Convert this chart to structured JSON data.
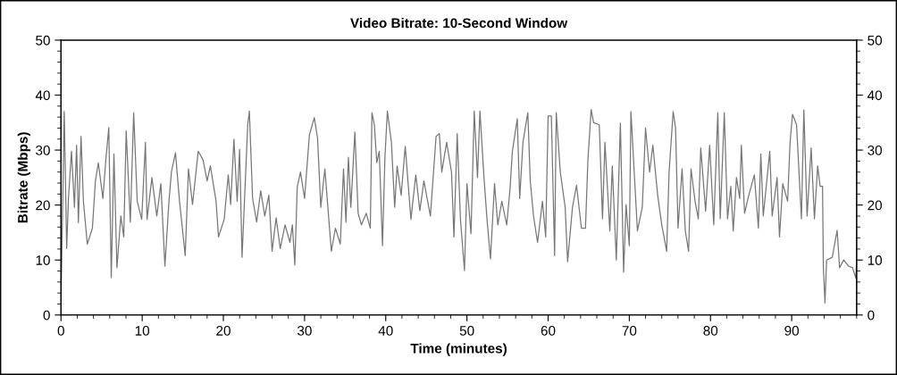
{
  "chart_data": {
    "type": "line",
    "title": "Video Bitrate: 10-Second Window",
    "xlabel": "Time (minutes)",
    "ylabel": "Bitrate (Mbps)",
    "xlim": [
      0,
      98
    ],
    "xticks": [
      0,
      10,
      20,
      30,
      40,
      50,
      60,
      70,
      80,
      90
    ],
    "ylim": [
      0,
      50
    ],
    "yticks": [
      0,
      10,
      20,
      30,
      40,
      50
    ],
    "y2lim": [
      0,
      50
    ],
    "y2ticks": [
      0,
      10,
      20,
      30,
      40,
      50
    ],
    "grid": false,
    "legend": false,
    "marker": "none",
    "line_style": "solid",
    "series": [
      {
        "color": "#777777",
        "x": [
          0,
          0.4,
          0.7,
          0.92,
          1.29,
          1.66,
          1.92,
          2.14,
          2.47,
          2.76,
          3.24,
          3.87,
          4.24,
          4.6,
          5.16,
          5.52,
          5.89,
          6.19,
          6.52,
          6.89,
          7.37,
          7.73,
          8.03,
          8.54,
          8.95,
          9.39,
          9.94,
          10.4,
          10.6,
          11.2,
          11.8,
          12.3,
          12.8,
          13.3,
          13.6,
          14.1,
          14.6,
          15.3,
          15.7,
          16.2,
          16.9,
          17.5,
          18.0,
          18.4,
          19.1,
          19.4,
          20.1,
          20.6,
          20.9,
          21.3,
          21.7,
          22.0,
          22.3,
          23.0,
          23.2,
          23.6,
          24.1,
          24.6,
          25.1,
          25.6,
          26.0,
          26.5,
          27.0,
          27.6,
          28.2,
          28.5,
          28.8,
          29.1,
          29.5,
          30.0,
          30.6,
          31.2,
          31.6,
          32.0,
          32.5,
          33.1,
          33.3,
          33.8,
          34.4,
          34.8,
          35.1,
          35.4,
          35.7,
          36.2,
          36.6,
          37.0,
          37.6,
          38.1,
          38.3,
          38.6,
          38.9,
          39.2,
          39.6,
          39.9,
          40.2,
          40.7,
          41.1,
          41.4,
          41.9,
          42.4,
          43.1,
          43.7,
          44.2,
          44.7,
          45.5,
          46.2,
          46.6,
          46.9,
          47.5,
          48.1,
          48.4,
          48.8,
          49.2,
          49.7,
          50.0,
          50.5,
          50.9,
          51.3,
          51.6,
          52.1,
          52.5,
          52.9,
          53.4,
          53.8,
          54.3,
          54.9,
          55.3,
          55.6,
          56.2,
          56.5,
          56.9,
          57.5,
          57.8,
          58.2,
          58.7,
          59.3,
          59.7,
          60.0,
          60.4,
          60.8,
          61.0,
          61.5,
          62.1,
          62.4,
          63.0,
          63.5,
          64.1,
          64.6,
          64.9,
          65.3,
          65.6,
          66.3,
          66.7,
          67.0,
          67.6,
          67.9,
          68.4,
          68.9,
          69.3,
          69.6,
          70.0,
          70.2,
          70.7,
          71.0,
          71.6,
          72.0,
          72.5,
          72.9,
          73.5,
          74.0,
          74.6,
          74.9,
          75.4,
          75.7,
          76.0,
          76.5,
          76.9,
          77.3,
          77.6,
          78.1,
          78.5,
          78.8,
          79.4,
          79.9,
          80.4,
          80.9,
          81.2,
          81.7,
          82.1,
          82.5,
          82.8,
          83.2,
          83.6,
          83.8,
          84.2,
          84.7,
          85.4,
          85.9,
          86.2,
          86.5,
          87.3,
          87.6,
          88.2,
          88.5,
          88.9,
          89.5,
          89.8,
          90.1,
          90.6,
          91.2,
          91.5,
          91.9,
          92.4,
          92.8,
          93.2,
          93.5,
          93.8,
          93.9,
          94.1,
          94.3,
          95.0,
          95.6,
          95.9,
          96.4,
          97.0,
          97.5,
          97.9,
          98.0
        ],
        "values": [
          2.4,
          37,
          12.1,
          21.2,
          29.8,
          19.6,
          30.9,
          16.8,
          32.5,
          20.7,
          12.9,
          15.8,
          24.4,
          27.7,
          21.2,
          28.2,
          34.1,
          6.8,
          29.3,
          8.6,
          18,
          14.2,
          33.5,
          16.9,
          36.8,
          20.7,
          17.4,
          31.4,
          17.4,
          25,
          18,
          23.9,
          8.9,
          20.7,
          26,
          29.5,
          20.7,
          10.8,
          26.6,
          20.1,
          29.8,
          28.2,
          24.4,
          27.1,
          20.7,
          14.2,
          17.4,
          25.5,
          20.1,
          32,
          20.7,
          30.1,
          10.5,
          34.6,
          37.1,
          21.2,
          16.9,
          22.6,
          18,
          21.8,
          11.6,
          17.7,
          12.1,
          16.4,
          13.2,
          16.4,
          9.1,
          23.3,
          26,
          21.2,
          32.8,
          35.9,
          32.2,
          19.6,
          26.6,
          15.3,
          11.6,
          15.8,
          12.9,
          26.6,
          16.9,
          28.7,
          19.6,
          33.3,
          18.5,
          16.4,
          18.5,
          15.8,
          36.8,
          34.6,
          27.7,
          29.8,
          12.6,
          28.7,
          37.1,
          31.4,
          19.6,
          27.1,
          21.8,
          30.7,
          17.4,
          25.5,
          19,
          24.4,
          18,
          32.5,
          33,
          26,
          31.4,
          26,
          14.2,
          33,
          17.4,
          8.1,
          23.9,
          14.8,
          37.1,
          25,
          37.1,
          25,
          16.9,
          10.2,
          23.9,
          16.4,
          20.7,
          16.4,
          22.8,
          29.8,
          35.7,
          21.2,
          31.4,
          36.8,
          24.4,
          18,
          13.2,
          20.7,
          14.2,
          36.2,
          36.2,
          10.8,
          36.8,
          26,
          19.6,
          9.7,
          19.6,
          23.6,
          15.8,
          15.8,
          28.2,
          37.4,
          35,
          34.6,
          17.5,
          31.4,
          15.3,
          27.1,
          10,
          34.9,
          7.8,
          20.1,
          12.6,
          37,
          23.4,
          15.3,
          19.6,
          34,
          26,
          30.9,
          21.7,
          16.4,
          11.6,
          26,
          37,
          34,
          15.8,
          26.6,
          15.3,
          11.6,
          26.6,
          20.7,
          17.5,
          30.4,
          18.9,
          30.9,
          16.4,
          36.8,
          17.5,
          36.8,
          17.5,
          23.4,
          15.3,
          25,
          21.2,
          30.9,
          18.5,
          21.7,
          25.5,
          15.8,
          29.3,
          18,
          29.8,
          18,
          25,
          14.2,
          23.9,
          20.7,
          31.4,
          36.5,
          34.6,
          17.5,
          37.3,
          18,
          30.4,
          17.5,
          27.1,
          23.4,
          23.4,
          8.9,
          2.2,
          10,
          10.5,
          15.4,
          8.6,
          10,
          8.9,
          8.6,
          6.7,
          10
        ]
      }
    ]
  }
}
